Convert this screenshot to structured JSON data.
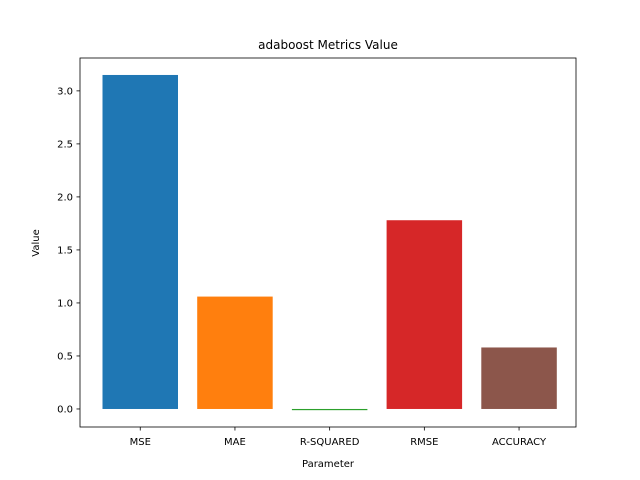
{
  "chart_data": {
    "type": "bar",
    "title": "adaboost Metrics Value",
    "xlabel": "Parameter",
    "ylabel": "Value",
    "categories": [
      "MSE",
      "MAE",
      "R-SQUARED",
      "RMSE",
      "ACCURACY"
    ],
    "values": [
      3.15,
      1.06,
      -0.01,
      1.78,
      0.58
    ],
    "colors": [
      "#1f77b4",
      "#ff7f0e",
      "#2ca02c",
      "#d62728",
      "#8c564b"
    ],
    "yticks": [
      0.0,
      0.5,
      1.0,
      1.5,
      2.0,
      2.5,
      3.0
    ],
    "ytick_labels": [
      "0.0",
      "0.5",
      "1.0",
      "1.5",
      "2.0",
      "2.5",
      "3.0"
    ],
    "ylim": [
      -0.17,
      3.31
    ],
    "grid": false,
    "legend": "none"
  }
}
